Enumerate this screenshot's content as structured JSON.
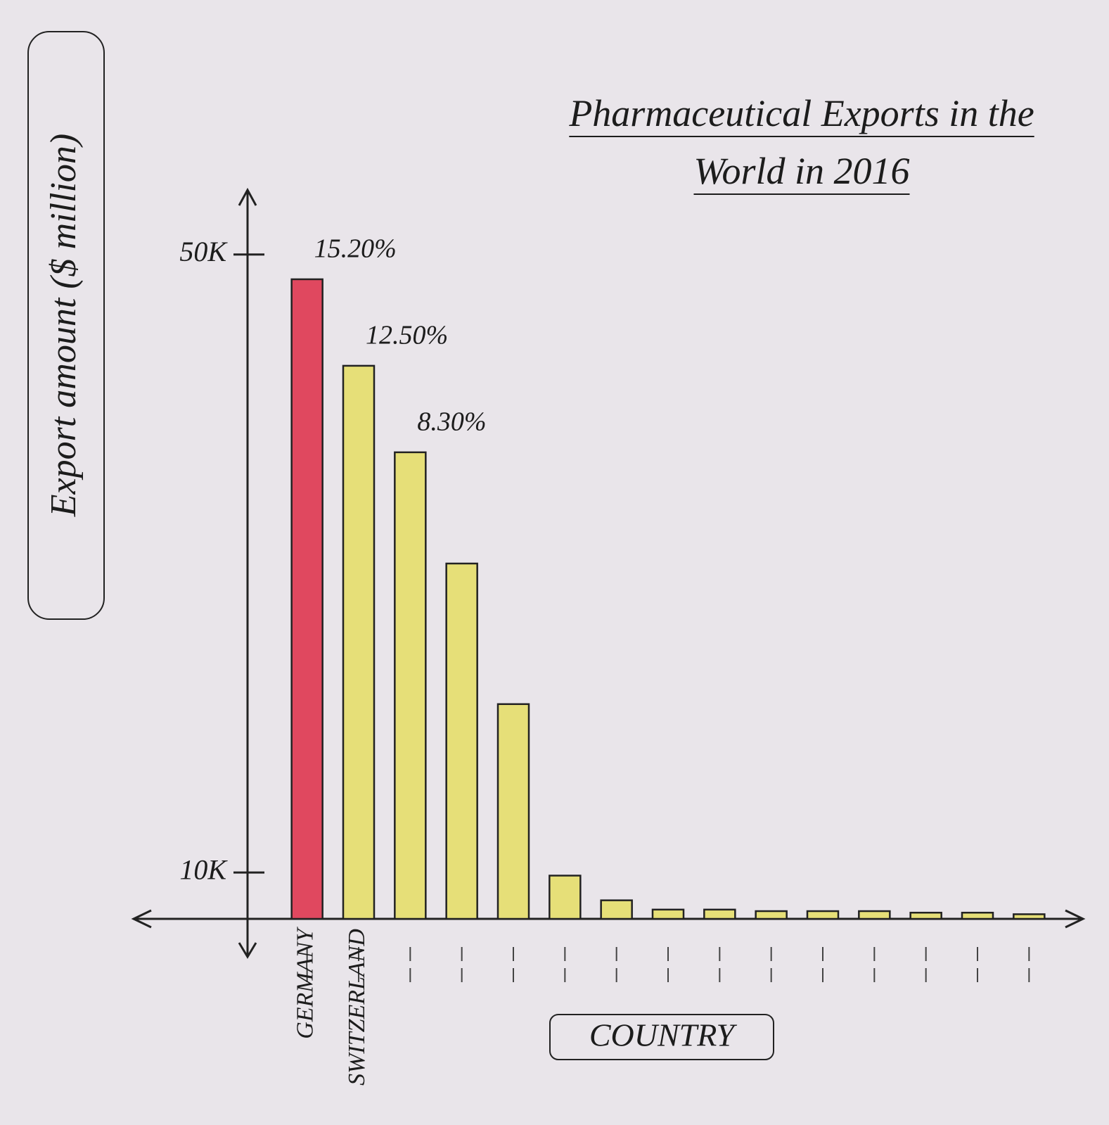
{
  "chart_data": {
    "type": "bar",
    "title": "Pharmaceutical Exports in the World in 2016",
    "y_label": "Export amount ($ million)",
    "x_label": "COUNTRY",
    "categories": [
      "GERMANY",
      "SWITZERLAND",
      null,
      null,
      null,
      null,
      null,
      null,
      null,
      null,
      null,
      null,
      null,
      null,
      null
    ],
    "values": [
      48400,
      42800,
      37200,
      30000,
      20900,
      9800,
      8200,
      7600,
      7600,
      7500,
      7500,
      7500,
      7400,
      7400,
      7300
    ],
    "colors": [
      "#e0485f",
      "#e6df78",
      "#e6df78",
      "#e6df78",
      "#e6df78",
      "#e6df78",
      "#e6df78",
      "#e6df78",
      "#e6df78",
      "#e6df78",
      "#e6df78",
      "#e6df78",
      "#e6df78",
      "#e6df78",
      "#e6df78"
    ],
    "annotations": [
      "15.20%",
      "12.50%",
      "8.30%"
    ],
    "ylim": [
      7000,
      55000
    ],
    "yticks": [
      {
        "value": 10000,
        "label": "10K"
      },
      {
        "value": 50000,
        "label": "50K"
      }
    ],
    "grid": false
  }
}
